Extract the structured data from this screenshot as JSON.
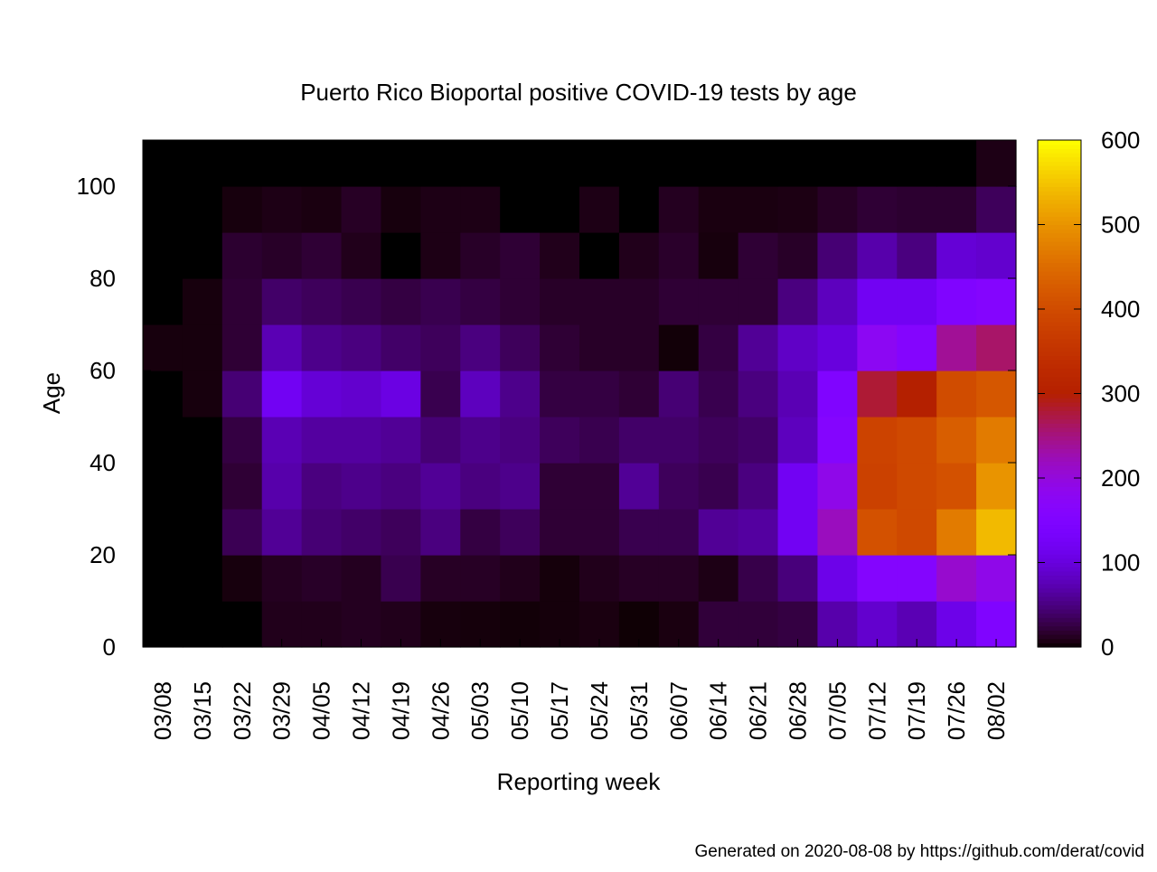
{
  "chart_data": {
    "type": "heatmap",
    "title": "Puerto Rico Bioportal positive COVID-19 tests by age",
    "xlabel": "Reporting week",
    "ylabel": "Age",
    "x_categories": [
      "03/08",
      "03/15",
      "03/22",
      "03/29",
      "04/05",
      "04/12",
      "04/19",
      "04/26",
      "05/03",
      "05/10",
      "05/17",
      "05/24",
      "05/31",
      "06/07",
      "06/14",
      "06/21",
      "06/28",
      "07/05",
      "07/12",
      "07/19",
      "07/26",
      "08/02"
    ],
    "y_bins": [
      "0-9",
      "10-19",
      "20-29",
      "30-39",
      "40-49",
      "50-59",
      "60-69",
      "70-79",
      "80-89",
      "90-99",
      "100-109"
    ],
    "y_ticks": [
      0,
      20,
      40,
      60,
      80,
      100
    ],
    "ylim": [
      0,
      110
    ],
    "color_scale": {
      "min": 0,
      "max": 600,
      "ticks": [
        0,
        100,
        200,
        300,
        400,
        500,
        600
      ]
    },
    "values": [
      [
        0,
        0,
        0,
        10,
        10,
        12,
        10,
        5,
        4,
        3,
        4,
        6,
        2,
        6,
        22,
        22,
        25,
        70,
        90,
        75,
        110,
        150
      ],
      [
        0,
        0,
        5,
        12,
        15,
        12,
        30,
        14,
        14,
        10,
        4,
        10,
        14,
        14,
        8,
        28,
        48,
        110,
        160,
        160,
        210,
        190
      ],
      [
        0,
        0,
        32,
        60,
        45,
        40,
        35,
        50,
        25,
        35,
        20,
        20,
        30,
        30,
        60,
        65,
        120,
        220,
        410,
        395,
        470,
        540
      ],
      [
        0,
        0,
        20,
        70,
        50,
        55,
        50,
        60,
        50,
        55,
        20,
        20,
        60,
        35,
        30,
        50,
        120,
        190,
        380,
        395,
        410,
        500
      ],
      [
        0,
        0,
        25,
        75,
        65,
        65,
        60,
        45,
        55,
        50,
        35,
        30,
        40,
        40,
        35,
        40,
        80,
        160,
        385,
        395,
        430,
        470
      ],
      [
        0,
        5,
        45,
        120,
        95,
        90,
        105,
        30,
        80,
        55,
        25,
        25,
        20,
        45,
        30,
        50,
        75,
        150,
        280,
        300,
        400,
        420
      ],
      [
        5,
        5,
        20,
        75,
        55,
        50,
        40,
        35,
        50,
        35,
        20,
        15,
        15,
        3,
        25,
        60,
        85,
        100,
        180,
        160,
        240,
        260
      ],
      [
        0,
        5,
        20,
        40,
        35,
        30,
        25,
        30,
        25,
        20,
        15,
        15,
        15,
        20,
        20,
        20,
        50,
        80,
        120,
        120,
        150,
        160
      ],
      [
        0,
        0,
        18,
        15,
        20,
        10,
        0,
        8,
        15,
        20,
        10,
        0,
        10,
        16,
        5,
        20,
        15,
        45,
        70,
        50,
        95,
        90
      ],
      [
        0,
        0,
        5,
        8,
        6,
        14,
        5,
        8,
        8,
        0,
        0,
        8,
        0,
        12,
        6,
        6,
        7,
        14,
        20,
        18,
        18,
        35
      ],
      [
        0,
        0,
        0,
        0,
        0,
        0,
        0,
        0,
        0,
        0,
        0,
        0,
        0,
        0,
        0,
        0,
        0,
        0,
        0,
        0,
        0,
        8
      ]
    ]
  },
  "footer": {
    "credit": "Generated on 2020-08-08 by https://github.com/derat/covid"
  },
  "colors": {
    "background": "#ffffff",
    "axis": "#000000"
  }
}
